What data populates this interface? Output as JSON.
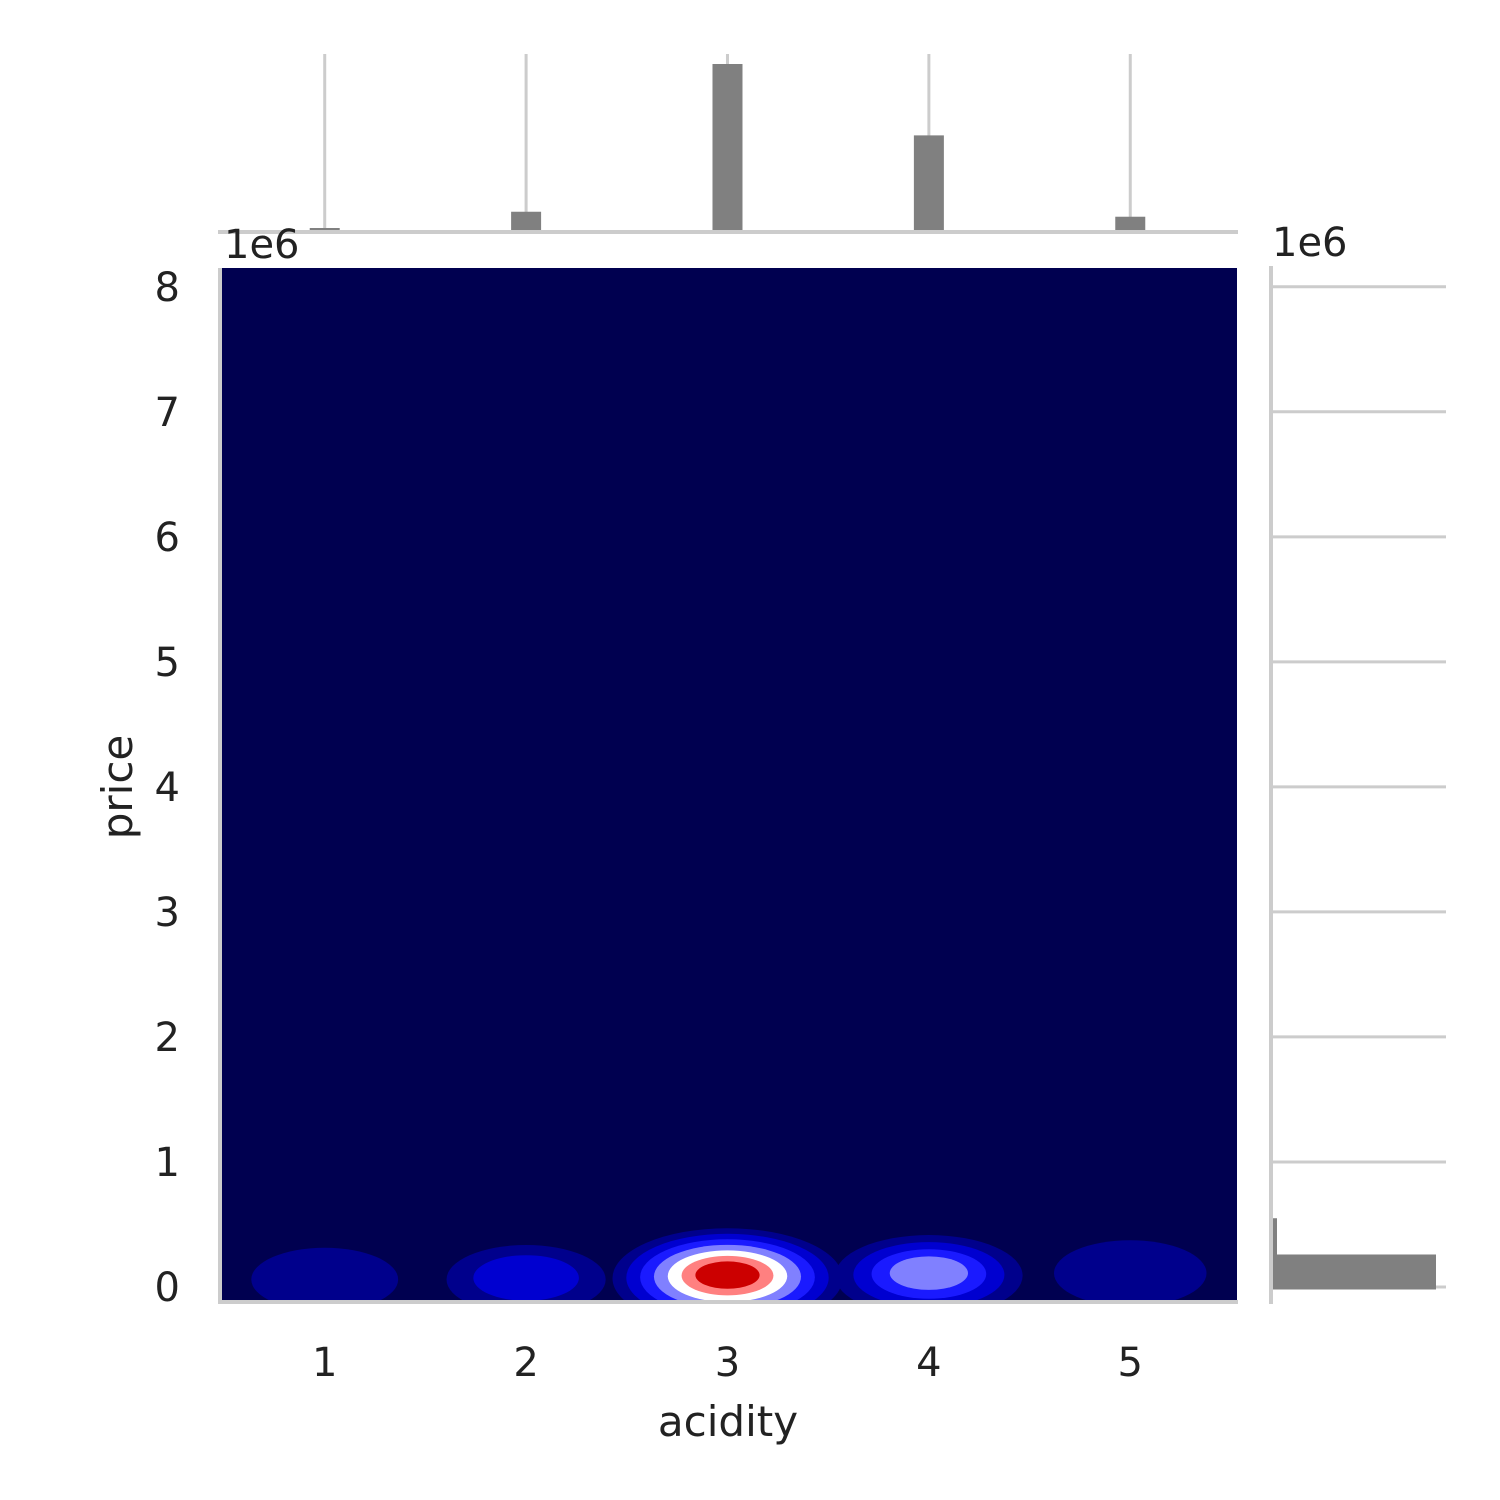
{
  "chart_data": {
    "type": "heatmap",
    "title": "",
    "xlabel": "acidity",
    "ylabel": "price",
    "xlim": [
      0.48,
      5.53
    ],
    "ylim": [
      -0.12,
      8.15
    ],
    "x_ticks": [
      "1",
      "2",
      "3",
      "4",
      "5"
    ],
    "y_ticks": [
      "0",
      "1",
      "2",
      "3",
      "4",
      "5",
      "6",
      "7",
      "8"
    ],
    "y_offset_label": "1e6",
    "marginal_y_offset_label": "1e6",
    "grid": true,
    "colormap": [
      "#000050",
      "#00008c",
      "#0000d0",
      "#1a1aff",
      "#8080ff",
      "#ffffff",
      "#ff8080",
      "#cc0000"
    ],
    "density_peaks": [
      {
        "acidity": 1,
        "price": 0.06,
        "density": 0.12
      },
      {
        "acidity": 2,
        "price": 0.06,
        "density": 0.25
      },
      {
        "acidity": 3,
        "price": 0.07,
        "density": 1.0
      },
      {
        "acidity": 4,
        "price": 0.09,
        "density": 0.55
      },
      {
        "acidity": 5,
        "price": 0.11,
        "density": 0.18
      }
    ],
    "marginal_x": {
      "categories": [
        "1",
        "2",
        "3",
        "4",
        "5"
      ],
      "values": [
        0.01,
        0.11,
        1.0,
        0.57,
        0.08
      ],
      "color": "#808080"
    },
    "marginal_y": {
      "bins": [
        {
          "price_from": -0.02,
          "price_to": 0.26,
          "value": 1.0
        },
        {
          "price_from": 0.26,
          "price_to": 0.55,
          "value": 0.02
        }
      ],
      "color": "#808080"
    }
  }
}
